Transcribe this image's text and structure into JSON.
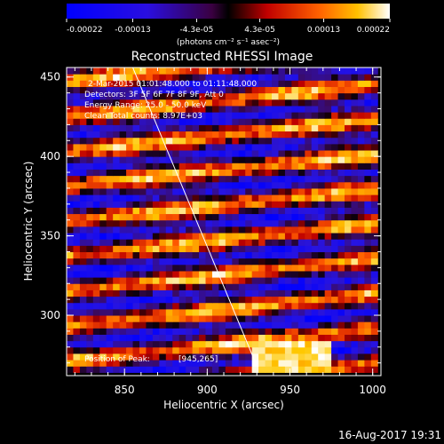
{
  "chart_data": {
    "type": "heatmap",
    "title": "Reconstructed RHESSI Image",
    "xlabel": "Heliocentric X (arcsec)",
    "ylabel": "Heliocentric Y (arcsec)",
    "xlim": [
      815,
      1005
    ],
    "ylim": [
      262,
      456
    ],
    "xticks": [
      850,
      900,
      950,
      1000
    ],
    "yticks": [
      300,
      350,
      400,
      450
    ],
    "xtick_labels": [
      "850",
      "900",
      "950",
      "1000"
    ],
    "ytick_labels": [
      "300",
      "350",
      "400",
      "450"
    ],
    "colorbar": {
      "range": [
        -0.00022,
        0.00022
      ],
      "tick_values": [
        -0.00022,
        -0.00013,
        -4.3e-05,
        4.3e-05,
        0.00013,
        0.00022
      ],
      "tick_labels": [
        "-0.00022",
        "-0.00013",
        "-4.3e-05",
        "4.3e-05",
        "0.00013",
        "0.00022"
      ],
      "units_label": "(photons cm⁻² s⁻¹ asec⁻²)"
    },
    "annotations": [
      "2-Mar-2015 01:01:48.000 to 01:11:48.000",
      "Detectors: 3F 5F 6F 7F 8F 9F, Att 0",
      "Energy Range: 25.0 - 50.0 keV",
      "Clean     Total counts: 8.97E+03"
    ],
    "peak_label": "Position of Peak:",
    "peak_value": "[945,265]",
    "peak_position": [
      945,
      265
    ],
    "limb_line": {
      "x": [
        855,
        930
      ],
      "y": [
        456,
        268
      ]
    },
    "timestamp": "16-Aug-2017 19:31",
    "cell_size_arcsec": [
      4,
      4
    ],
    "rows_y": [
      266,
      270,
      274,
      278,
      282,
      286,
      290,
      294,
      298,
      302,
      306,
      310,
      314,
      318,
      322,
      326,
      330,
      334,
      338,
      342,
      346,
      350,
      354,
      358,
      362,
      366,
      370,
      374,
      378,
      382,
      386,
      390,
      394,
      398,
      402,
      406,
      410,
      414,
      418,
      422,
      426,
      430,
      434,
      438,
      442,
      446,
      450,
      454
    ],
    "cols_x": [
      817,
      821,
      825,
      829,
      833,
      837,
      841,
      845,
      849,
      853,
      857,
      861,
      865,
      869,
      873,
      877,
      881,
      885,
      889,
      893,
      897,
      901,
      905,
      909,
      913,
      917,
      921,
      925,
      929,
      933,
      937,
      941,
      945,
      949,
      953,
      957,
      961,
      965,
      969,
      973,
      977,
      981,
      985,
      989,
      993,
      997,
      1001
    ],
    "values_description_units": "photons cm^-2 s^-1 asec^-2"
  }
}
